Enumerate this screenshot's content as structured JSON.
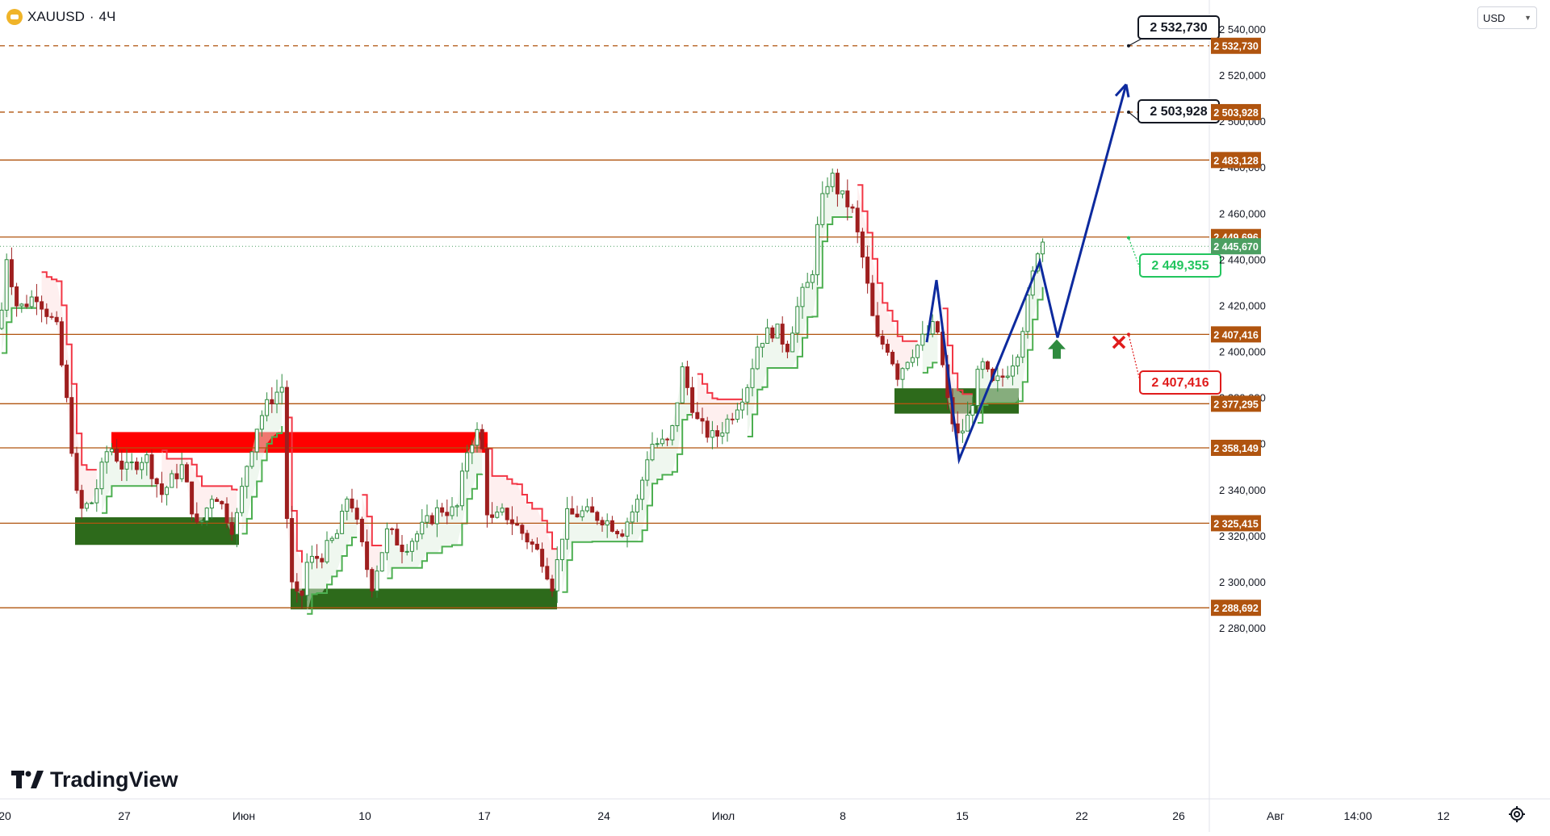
{
  "header": {
    "symbol": "XAUUSD",
    "separator": "·",
    "timeframe": "4Ч",
    "currency": "USD",
    "logo_text": "TradingView"
  },
  "colors": {
    "level_line": "#b0540f",
    "bull_candle": "#2e8b3e",
    "bear_candle": "#9e1f1f",
    "forecast_line": "#0d2a9e",
    "supertrend_up": "#4caf50",
    "supertrend_down": "#f23645",
    "supply_zone": "#ff0000",
    "demand_zone": "#2d6a1b",
    "last_price_label": "#4c9f62"
  },
  "chart_data": {
    "type": "line",
    "title": "XAUUSD · 4Ч",
    "price_axis": {
      "min": 2270,
      "max": 2545,
      "ticks": [
        "2 280,000",
        "2 300,000",
        "2 320,000",
        "2 340,000",
        "2 360,000",
        "2 380,000",
        "2 400,000",
        "2 420,000",
        "2 440,000",
        "2 460,000",
        "2 480,000",
        "2 500,000",
        "2 520,000",
        "2 540,000"
      ]
    },
    "time_axis": {
      "labels": [
        "20",
        "27",
        "Июн",
        "10",
        "17",
        "24",
        "Июл",
        "8",
        "15",
        "22",
        "26",
        "Авг",
        "14:00",
        "12"
      ]
    },
    "levels": [
      {
        "value": 2532.73,
        "label": "2 532,730",
        "style": "dashed"
      },
      {
        "value": 2503.928,
        "label": "2 503,928",
        "style": "dashed"
      },
      {
        "value": 2483.128,
        "label": "2 483,128",
        "style": "solid"
      },
      {
        "value": 2449.696,
        "label": "2 449,696",
        "style": "solid"
      },
      {
        "value": 2407.416,
        "label": "2 407,416",
        "style": "solid"
      },
      {
        "value": 2377.295,
        "label": "2 377,295",
        "style": "solid"
      },
      {
        "value": 2358.149,
        "label": "2 358,149",
        "style": "solid"
      },
      {
        "value": 2325.415,
        "label": "2 325,415",
        "style": "solid"
      },
      {
        "value": 2288.692,
        "label": "2 288,692",
        "style": "solid"
      }
    ],
    "last_price": {
      "value": 2445.67,
      "label": "2 445,670"
    },
    "callouts": [
      {
        "label": "2 532,730",
        "kind": "target"
      },
      {
        "label": "2 503,928",
        "kind": "target"
      },
      {
        "label": "2 449,355",
        "kind": "entry"
      },
      {
        "label": "2 407,416",
        "kind": "stop"
      }
    ],
    "price_path": [
      {
        "t": 0,
        "p": 2410
      },
      {
        "t": 8,
        "p": 2442
      },
      {
        "t": 22,
        "p": 2418
      },
      {
        "t": 45,
        "p": 2425
      },
      {
        "t": 70,
        "p": 2410
      },
      {
        "t": 85,
        "p": 2372
      },
      {
        "t": 97,
        "p": 2330
      },
      {
        "t": 115,
        "p": 2335
      },
      {
        "t": 135,
        "p": 2360
      },
      {
        "t": 155,
        "p": 2348
      },
      {
        "t": 180,
        "p": 2355
      },
      {
        "t": 200,
        "p": 2338
      },
      {
        "t": 225,
        "p": 2350
      },
      {
        "t": 245,
        "p": 2322
      },
      {
        "t": 265,
        "p": 2340
      },
      {
        "t": 290,
        "p": 2322
      },
      {
        "t": 305,
        "p": 2350
      },
      {
        "t": 320,
        "p": 2370
      },
      {
        "t": 337,
        "p": 2380
      },
      {
        "t": 350,
        "p": 2385
      },
      {
        "t": 355,
        "p": 2330
      },
      {
        "t": 362,
        "p": 2296
      },
      {
        "t": 372,
        "p": 2290
      },
      {
        "t": 380,
        "p": 2308
      },
      {
        "t": 400,
        "p": 2312
      },
      {
        "t": 420,
        "p": 2322
      },
      {
        "t": 432,
        "p": 2340
      },
      {
        "t": 445,
        "p": 2320
      },
      {
        "t": 460,
        "p": 2298
      },
      {
        "t": 480,
        "p": 2322
      },
      {
        "t": 500,
        "p": 2315
      },
      {
        "t": 520,
        "p": 2322
      },
      {
        "t": 545,
        "p": 2332
      },
      {
        "t": 565,
        "p": 2330
      },
      {
        "t": 580,
        "p": 2360
      },
      {
        "t": 595,
        "p": 2366
      },
      {
        "t": 605,
        "p": 2325
      },
      {
        "t": 625,
        "p": 2330
      },
      {
        "t": 650,
        "p": 2320
      },
      {
        "t": 672,
        "p": 2310
      },
      {
        "t": 685,
        "p": 2298
      },
      {
        "t": 700,
        "p": 2328
      },
      {
        "t": 720,
        "p": 2330
      },
      {
        "t": 745,
        "p": 2328
      },
      {
        "t": 770,
        "p": 2322
      },
      {
        "t": 790,
        "p": 2335
      },
      {
        "t": 805,
        "p": 2360
      },
      {
        "t": 830,
        "p": 2360
      },
      {
        "t": 845,
        "p": 2392
      },
      {
        "t": 865,
        "p": 2368
      },
      {
        "t": 885,
        "p": 2362
      },
      {
        "t": 905,
        "p": 2372
      },
      {
        "t": 925,
        "p": 2385
      },
      {
        "t": 940,
        "p": 2405
      },
      {
        "t": 960,
        "p": 2410
      },
      {
        "t": 975,
        "p": 2402
      },
      {
        "t": 990,
        "p": 2422
      },
      {
        "t": 1005,
        "p": 2432
      },
      {
        "t": 1015,
        "p": 2460
      },
      {
        "t": 1028,
        "p": 2478
      },
      {
        "t": 1040,
        "p": 2468
      },
      {
        "t": 1055,
        "p": 2462
      },
      {
        "t": 1070,
        "p": 2438
      },
      {
        "t": 1085,
        "p": 2405
      },
      {
        "t": 1100,
        "p": 2402
      },
      {
        "t": 1112,
        "p": 2390
      },
      {
        "t": 1125,
        "p": 2398
      },
      {
        "t": 1140,
        "p": 2404
      },
      {
        "t": 1160,
        "p": 2412
      },
      {
        "t": 1175,
        "p": 2375
      },
      {
        "t": 1187,
        "p": 2362
      },
      {
        "t": 1200,
        "p": 2372
      },
      {
        "t": 1215,
        "p": 2395
      },
      {
        "t": 1230,
        "p": 2385
      },
      {
        "t": 1245,
        "p": 2390
      },
      {
        "t": 1260,
        "p": 2400
      },
      {
        "t": 1275,
        "p": 2425
      },
      {
        "t": 1288,
        "p": 2450
      },
      {
        "t": 1296,
        "p": 2446
      }
    ],
    "forecast_path": [
      {
        "t": 1148,
        "p": 2404
      },
      {
        "t": 1160,
        "p": 2431
      },
      {
        "t": 1188,
        "p": 2353
      },
      {
        "t": 1288,
        "p": 2439
      },
      {
        "t": 1310,
        "p": 2406
      },
      {
        "t": 1395,
        "p": 2516
      },
      {
        "t": 1382,
        "p": 2511
      }
    ],
    "supply_zones": [
      {
        "t0": 138,
        "t1": 604,
        "top": 2365,
        "bottom": 2356
      }
    ],
    "demand_zones": [
      {
        "t0": 93,
        "t1": 296,
        "top": 2328,
        "bottom": 2316
      },
      {
        "t0": 360,
        "t1": 690,
        "top": 2297,
        "bottom": 2288
      },
      {
        "t0": 1108,
        "t1": 1262,
        "top": 2384,
        "bottom": 2373
      }
    ],
    "stop_marker": {
      "t": 1386,
      "p": 2404
    },
    "buy_arrow": {
      "t": 1309,
      "p": 2401
    },
    "grid": false,
    "legend": "none"
  }
}
